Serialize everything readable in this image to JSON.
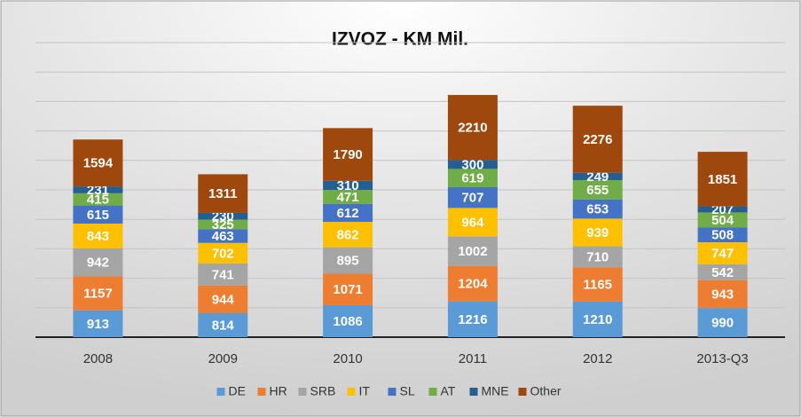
{
  "chart_data": {
    "type": "stacked-bar",
    "title": "IZVOZ - KM Mil.",
    "categories": [
      "2008",
      "2009",
      "2010",
      "2011",
      "2012",
      "2013-Q3"
    ],
    "series": [
      {
        "name": "DE",
        "color": "#5b9bd5",
        "values": [
          913,
          814,
          1086,
          1216,
          1210,
          990
        ]
      },
      {
        "name": "HR",
        "color": "#ed7d31",
        "values": [
          1157,
          944,
          1071,
          1204,
          1165,
          943
        ]
      },
      {
        "name": "SRB",
        "color": "#a5a5a5",
        "values": [
          942,
          741,
          895,
          1002,
          710,
          542
        ]
      },
      {
        "name": "IT",
        "color": "#ffc000",
        "values": [
          843,
          702,
          862,
          964,
          939,
          747
        ]
      },
      {
        "name": "SL",
        "color": "#4472c4",
        "values": [
          615,
          463,
          612,
          707,
          653,
          508
        ]
      },
      {
        "name": "AT",
        "color": "#70ad47",
        "values": [
          415,
          325,
          471,
          619,
          655,
          504
        ]
      },
      {
        "name": "MNE",
        "color": "#255e91",
        "values": [
          231,
          230,
          310,
          300,
          249,
          207
        ]
      },
      {
        "name": "Other",
        "color": "#9e480e",
        "values": [
          1594,
          1311,
          1790,
          2210,
          2276,
          1851
        ]
      }
    ],
    "ylim": [
      0,
      10000
    ],
    "yticks": [
      0,
      1000,
      2000,
      3000,
      4000,
      5000,
      6000,
      7000,
      8000,
      9000,
      10000
    ],
    "grid": true,
    "legend": "bottom"
  }
}
